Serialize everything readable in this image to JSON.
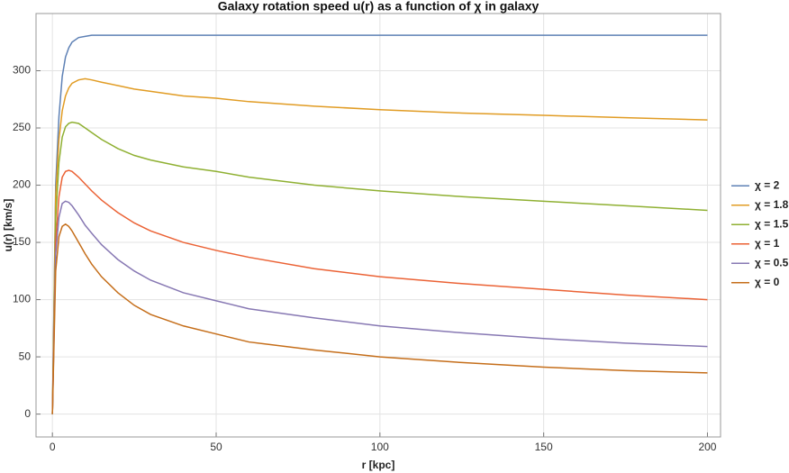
{
  "chart_data": {
    "type": "line",
    "title": "Galaxy rotation speed u(r) as a function of χ in galaxy",
    "x_label": "r [kpc]",
    "y_label": "u(r) [km/s]",
    "x": [
      0,
      1,
      2,
      3,
      4,
      5,
      6,
      8,
      10,
      12,
      15,
      20,
      25,
      30,
      40,
      50,
      60,
      80,
      100,
      125,
      150,
      175,
      200
    ],
    "series": [
      {
        "name": "χ = 2",
        "color": "#5e81b5",
        "values": [
          0,
          200,
          260,
          295,
          312,
          320,
          325,
          329,
          330,
          331,
          331,
          331,
          331,
          331,
          331,
          331,
          331,
          331,
          331,
          331,
          331,
          331,
          331
        ]
      },
      {
        "name": "χ = 1.8",
        "color": "#e19c24",
        "values": [
          0,
          190,
          240,
          265,
          278,
          285,
          289,
          292,
          293,
          292,
          290,
          287,
          284,
          282,
          278,
          276,
          273,
          269,
          266,
          263,
          261,
          259,
          257
        ]
      },
      {
        "name": "χ = 1.5",
        "color": "#8fb032",
        "values": [
          0,
          170,
          220,
          242,
          251,
          254,
          255,
          254,
          250,
          246,
          240,
          232,
          226,
          222,
          216,
          212,
          207,
          200,
          195,
          190,
          186,
          182,
          178
        ]
      },
      {
        "name": "χ = 1",
        "color": "#eb6235",
        "values": [
          0,
          150,
          190,
          207,
          212,
          213,
          212,
          207,
          201,
          195,
          187,
          176,
          167,
          160,
          150,
          143,
          137,
          127,
          120,
          114,
          109,
          104,
          100
        ]
      },
      {
        "name": "χ = 0.5",
        "color": "#8778b3",
        "values": [
          0,
          140,
          172,
          184,
          186,
          185,
          182,
          174,
          165,
          158,
          148,
          135,
          125,
          117,
          106,
          99,
          92,
          84,
          77,
          71,
          66,
          62,
          59
        ]
      },
      {
        "name": "χ = 0",
        "color": "#c56e1a",
        "values": [
          0,
          125,
          155,
          164,
          166,
          164,
          160,
          150,
          140,
          131,
          120,
          106,
          95,
          87,
          77,
          70,
          63,
          56,
          50,
          45,
          41,
          38,
          36
        ]
      }
    ],
    "xlim": [
      -5,
      204
    ],
    "ylim": [
      -20,
      350
    ],
    "xticks": [
      0,
      50,
      100,
      150,
      200
    ],
    "yticks": [
      0,
      50,
      100,
      150,
      200,
      250,
      300
    ],
    "grid": true,
    "legend": "right"
  }
}
